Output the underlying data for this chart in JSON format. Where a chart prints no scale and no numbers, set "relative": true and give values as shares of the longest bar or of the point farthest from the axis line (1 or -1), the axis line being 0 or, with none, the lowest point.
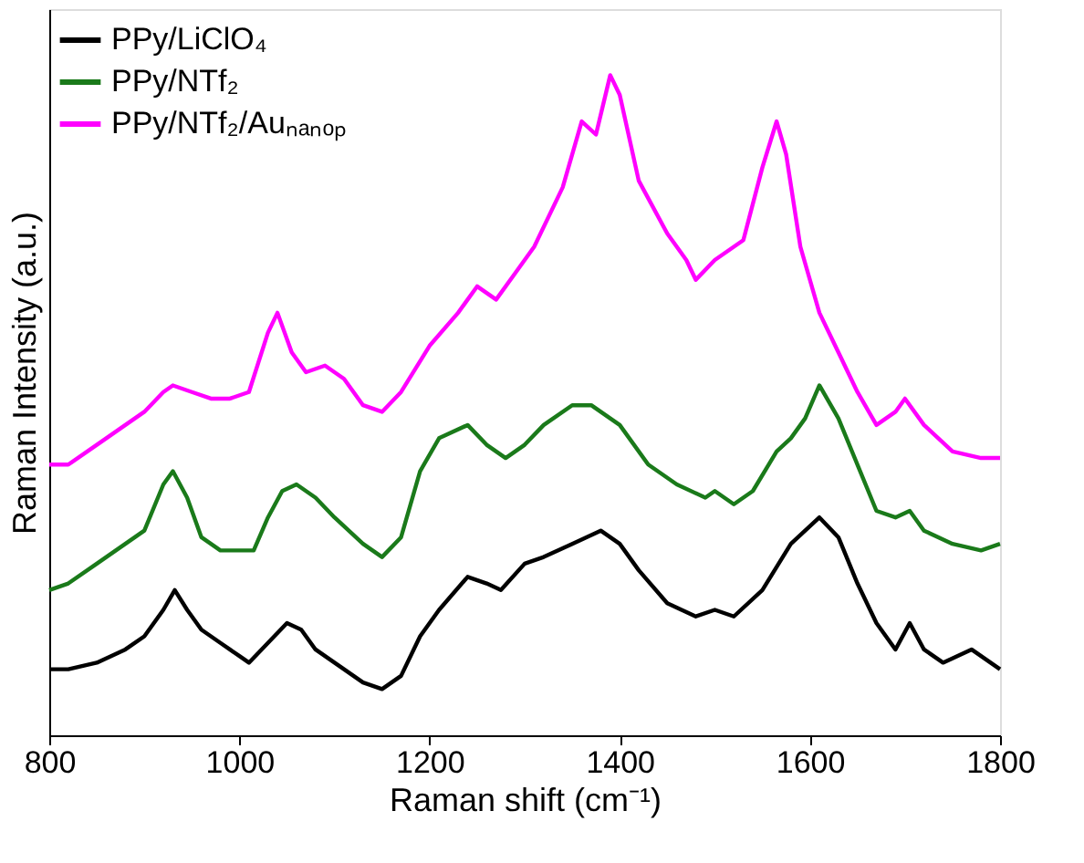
{
  "chart_data": {
    "type": "line",
    "relative": true,
    "xlabel": "Raman shift (cm⁻¹)",
    "ylabel": "Raman Intensity (a.u.)",
    "xlim": [
      800,
      1800
    ],
    "xticks": [
      800,
      1000,
      1200,
      1400,
      1600,
      1800
    ],
    "grid": false,
    "legend": "top left",
    "line_style": "solid",
    "marker": "none",
    "series": [
      {
        "name": "PPy/LiClO₄",
        "color": "#000000",
        "x": [
          800,
          820,
          850,
          880,
          900,
          920,
          932,
          945,
          960,
          980,
          1000,
          1010,
          1030,
          1050,
          1065,
          1080,
          1100,
          1130,
          1150,
          1170,
          1190,
          1210,
          1240,
          1260,
          1275,
          1300,
          1320,
          1350,
          1380,
          1400,
          1420,
          1450,
          1480,
          1500,
          1520,
          1550,
          1580,
          1610,
          1630,
          1650,
          1670,
          1690,
          1705,
          1720,
          1740,
          1770,
          1790,
          1800
        ],
        "values": [
          0.1,
          0.1,
          0.11,
          0.13,
          0.15,
          0.19,
          0.22,
          0.19,
          0.16,
          0.14,
          0.12,
          0.11,
          0.14,
          0.17,
          0.16,
          0.13,
          0.11,
          0.08,
          0.07,
          0.09,
          0.15,
          0.19,
          0.24,
          0.23,
          0.22,
          0.26,
          0.27,
          0.29,
          0.31,
          0.29,
          0.25,
          0.2,
          0.18,
          0.19,
          0.18,
          0.22,
          0.29,
          0.33,
          0.3,
          0.23,
          0.17,
          0.13,
          0.17,
          0.13,
          0.11,
          0.13,
          0.11,
          0.1
        ]
      },
      {
        "name": "PPy/NTf₂",
        "color": "#1a7a1a",
        "x": [
          800,
          820,
          850,
          880,
          900,
          920,
          930,
          945,
          960,
          980,
          1000,
          1015,
          1030,
          1045,
          1060,
          1080,
          1100,
          1130,
          1150,
          1170,
          1190,
          1210,
          1240,
          1260,
          1280,
          1300,
          1320,
          1350,
          1370,
          1400,
          1430,
          1460,
          1490,
          1500,
          1520,
          1540,
          1565,
          1580,
          1595,
          1610,
          1630,
          1650,
          1670,
          1690,
          1705,
          1720,
          1750,
          1780,
          1800
        ],
        "values": [
          0.22,
          0.23,
          0.26,
          0.29,
          0.31,
          0.38,
          0.4,
          0.36,
          0.3,
          0.28,
          0.28,
          0.28,
          0.33,
          0.37,
          0.38,
          0.36,
          0.33,
          0.29,
          0.27,
          0.3,
          0.4,
          0.45,
          0.47,
          0.44,
          0.42,
          0.44,
          0.47,
          0.5,
          0.5,
          0.47,
          0.41,
          0.38,
          0.36,
          0.37,
          0.35,
          0.37,
          0.43,
          0.45,
          0.48,
          0.53,
          0.48,
          0.41,
          0.34,
          0.33,
          0.34,
          0.31,
          0.29,
          0.28,
          0.29
        ]
      },
      {
        "name": "PPy/NTf₂/Auₙₐₙₒₚ",
        "color": "#ff00ff",
        "x": [
          800,
          820,
          850,
          870,
          900,
          920,
          930,
          950,
          970,
          990,
          1010,
          1030,
          1040,
          1055,
          1070,
          1090,
          1110,
          1130,
          1150,
          1170,
          1200,
          1230,
          1250,
          1270,
          1290,
          1310,
          1340,
          1360,
          1375,
          1390,
          1400,
          1420,
          1450,
          1470,
          1480,
          1500,
          1530,
          1550,
          1565,
          1575,
          1590,
          1610,
          1630,
          1650,
          1670,
          1690,
          1700,
          1720,
          1750,
          1780,
          1800
        ],
        "values": [
          0.41,
          0.41,
          0.44,
          0.46,
          0.49,
          0.52,
          0.53,
          0.52,
          0.51,
          0.51,
          0.52,
          0.61,
          0.64,
          0.58,
          0.55,
          0.56,
          0.54,
          0.5,
          0.49,
          0.52,
          0.59,
          0.64,
          0.68,
          0.66,
          0.7,
          0.74,
          0.83,
          0.93,
          0.91,
          1.0,
          0.97,
          0.84,
          0.76,
          0.72,
          0.69,
          0.72,
          0.75,
          0.86,
          0.93,
          0.88,
          0.74,
          0.64,
          0.58,
          0.52,
          0.47,
          0.49,
          0.51,
          0.47,
          0.43,
          0.42,
          0.42
        ]
      }
    ]
  }
}
